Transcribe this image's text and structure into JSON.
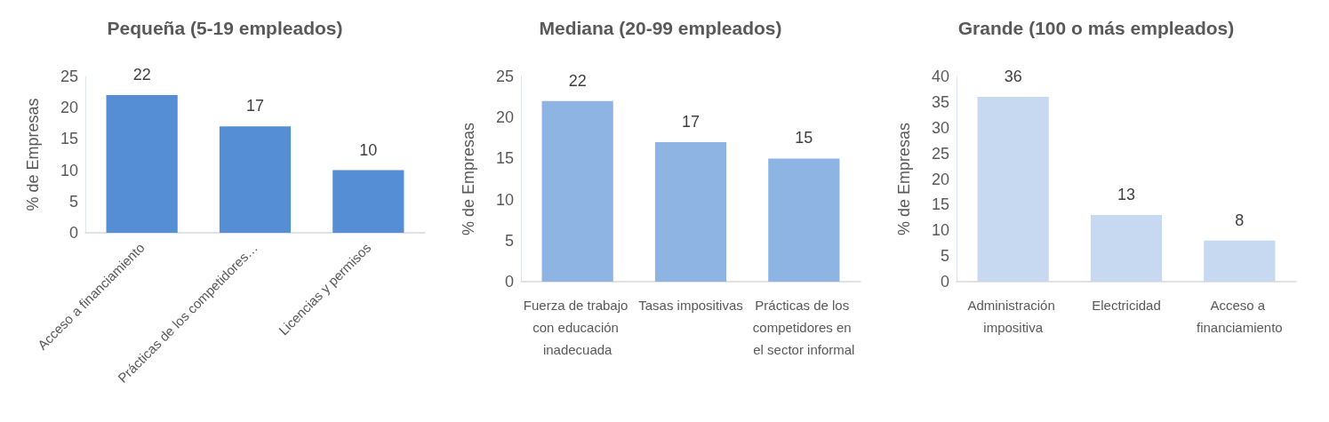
{
  "chart_data": [
    {
      "type": "bar",
      "title": "Pequeña (5-19 empleados)",
      "ylabel": "% de Empresas",
      "categories": [
        "Acceso a financiamiento",
        "Prácticas de los competidores…",
        "Licencias y permisos"
      ],
      "values": [
        22,
        17,
        10
      ],
      "color": "#558ed5",
      "ylim": [
        0,
        25
      ],
      "yticks": [
        0,
        5,
        10,
        15,
        20,
        25
      ],
      "data_labels": true
    },
    {
      "type": "bar",
      "title": "Mediana (20-99 empleados)",
      "ylabel": "% de Empresas",
      "categories": [
        "Fuerza de trabajo con educación inadecuada",
        "Tasas impositivas",
        "Prácticas de los competidores en el sector informal"
      ],
      "values": [
        22,
        17,
        15
      ],
      "color": "#8eb4e3",
      "ylim": [
        0,
        25
      ],
      "yticks": [
        0,
        5,
        10,
        15,
        20,
        25
      ],
      "data_labels": true
    },
    {
      "type": "bar",
      "title": "Grande (100 o más empleados)",
      "ylabel": "% de Empresas",
      "categories": [
        "Administración impositiva",
        "Electricidad",
        "Acceso a financiamiento"
      ],
      "values": [
        36,
        13,
        8
      ],
      "color": "#c6d9f1",
      "ylim": [
        0,
        40
      ],
      "yticks": [
        0,
        5,
        10,
        15,
        20,
        25,
        30,
        35,
        40
      ],
      "data_labels": true
    }
  ]
}
